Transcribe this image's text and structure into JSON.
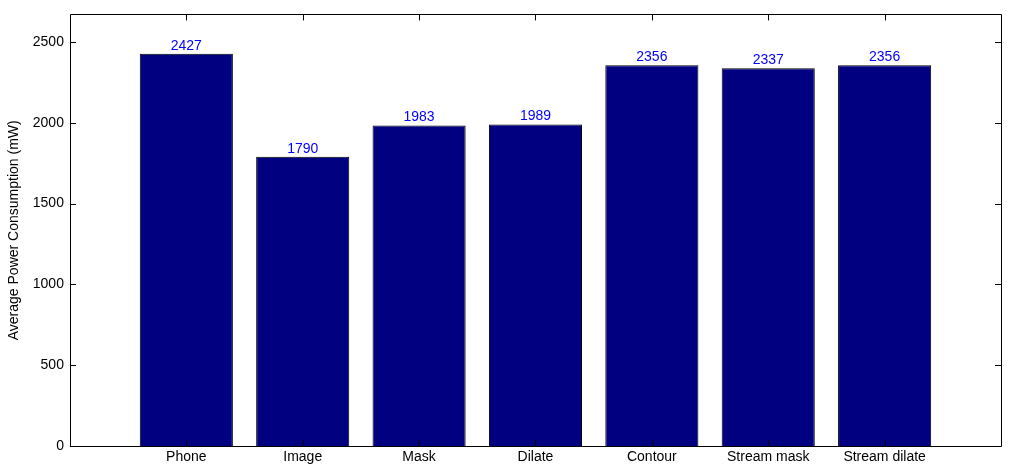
{
  "chart_data": {
    "type": "bar",
    "ylabel": "Average Power Consumption (mW)",
    "categories": [
      "Phone",
      "Image",
      "Mask",
      "Dilate",
      "Contour",
      "Stream mask",
      "Stream dilate"
    ],
    "values": [
      2427,
      1790,
      1983,
      1989,
      2356,
      2337,
      2356
    ],
    "color": "#000080",
    "data_labels": true,
    "ylim": [
      0,
      2670
    ],
    "yticks": [
      0,
      500,
      1000,
      1500,
      2000,
      2500
    ],
    "grid": false,
    "legend": false
  }
}
